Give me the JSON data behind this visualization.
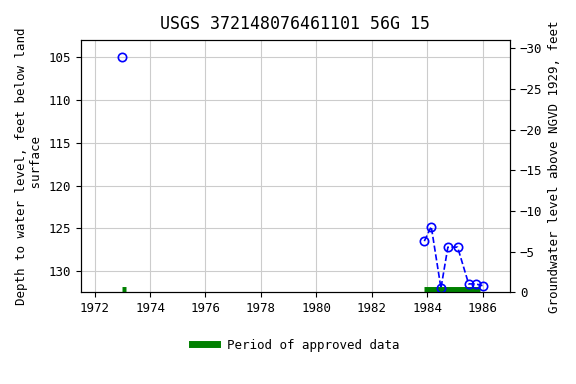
{
  "title": "USGS 372148076461101 56G 15",
  "xlabel": "",
  "ylabel_left": "Depth to water level, feet below land\n surface",
  "ylabel_right": "Groundwater level above NGVD 1929, feet",
  "xlim": [
    1971.5,
    1987.0
  ],
  "ylim_left": [
    132.5,
    103.0
  ],
  "ylim_right": [
    0,
    -31
  ],
  "yticks_left": [
    105,
    110,
    115,
    120,
    125,
    130
  ],
  "yticks_right": [
    0,
    -5,
    -10,
    -15,
    -20,
    -25,
    -30
  ],
  "xticks": [
    1972,
    1974,
    1976,
    1978,
    1980,
    1982,
    1984,
    1986
  ],
  "data_x": [
    1973.0,
    1983.9,
    1984.15,
    1984.5,
    1984.75,
    1985.1,
    1985.5,
    1985.75,
    1986.0
  ],
  "data_y": [
    105.0,
    126.5,
    124.8,
    132.0,
    127.2,
    127.2,
    131.5,
    131.5,
    131.7
  ],
  "approved_bars": [
    {
      "x_start": 1973.0,
      "x_end": 1973.15,
      "y": 132.2
    },
    {
      "x_start": 1983.9,
      "x_end": 1985.9,
      "y": 132.2
    }
  ],
  "legend_label": "Period of approved data",
  "legend_color": "#008000",
  "point_color": "blue",
  "line_color": "blue",
  "grid_color": "#cccccc",
  "background_color": "#ffffff",
  "title_fontsize": 12
}
